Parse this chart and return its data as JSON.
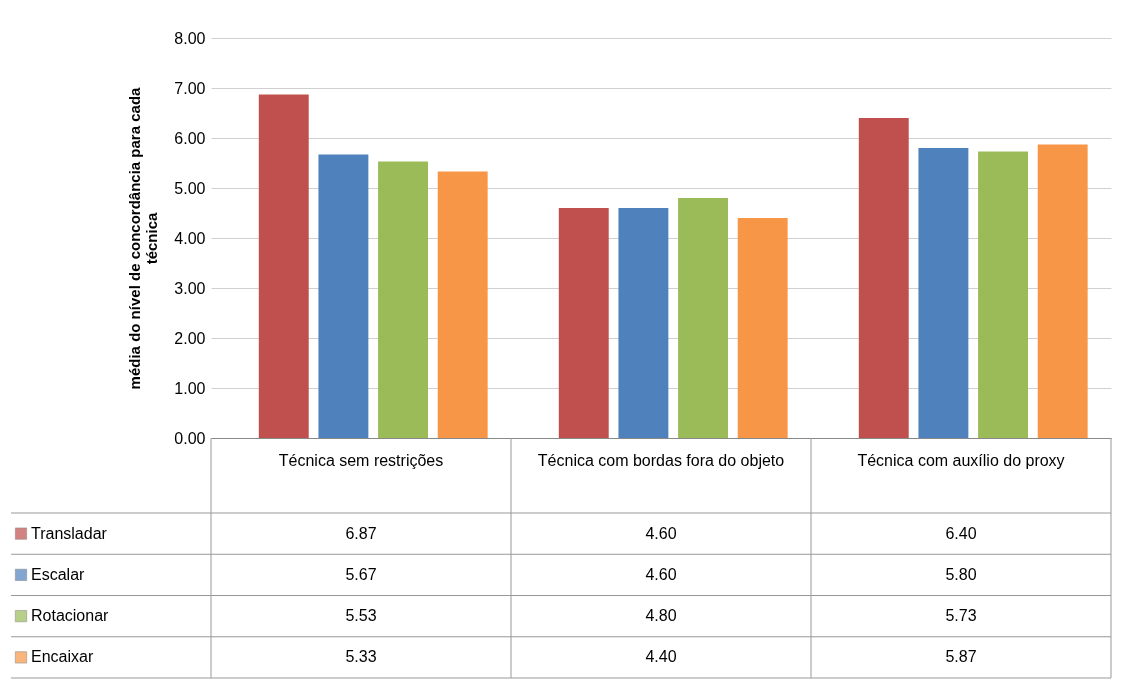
{
  "chart_data": {
    "type": "bar",
    "ylabel": "média do nível de concordância para cada técnica",
    "categories": [
      "Técnica sem restrições",
      "Técnica com bordas fora do objeto",
      "Técnica com auxílio do proxy"
    ],
    "series": [
      {
        "name": "Transladar",
        "color": "#c0504d",
        "values": [
          6.87,
          4.6,
          6.4
        ],
        "value_labels": [
          "6.87",
          "4.60",
          "6.40"
        ]
      },
      {
        "name": "Escalar",
        "color": "#4f81bd",
        "values": [
          5.67,
          4.6,
          5.8
        ],
        "value_labels": [
          "5.67",
          "4.60",
          "5.80"
        ]
      },
      {
        "name": "Rotacionar",
        "color": "#9bbb59",
        "values": [
          5.53,
          4.8,
          5.73
        ],
        "value_labels": [
          "5.53",
          "4.80",
          "5.73"
        ]
      },
      {
        "name": "Encaixar",
        "color": "#f79646",
        "values": [
          5.33,
          4.4,
          5.87
        ],
        "value_labels": [
          "5.33",
          "4.40",
          "5.87"
        ]
      }
    ],
    "ylim": [
      0,
      8
    ],
    "yticks": [
      {
        "value": 0,
        "label": "0.00"
      },
      {
        "value": 1,
        "label": "1.00"
      },
      {
        "value": 2,
        "label": "2.00"
      },
      {
        "value": 3,
        "label": "3.00"
      },
      {
        "value": 4,
        "label": "4.00"
      },
      {
        "value": 5,
        "label": "5.00"
      },
      {
        "value": 6,
        "label": "6.00"
      },
      {
        "value": 7,
        "label": "7.00"
      },
      {
        "value": 8,
        "label": "8.00"
      }
    ],
    "grid": "y",
    "legend": "bottom"
  }
}
